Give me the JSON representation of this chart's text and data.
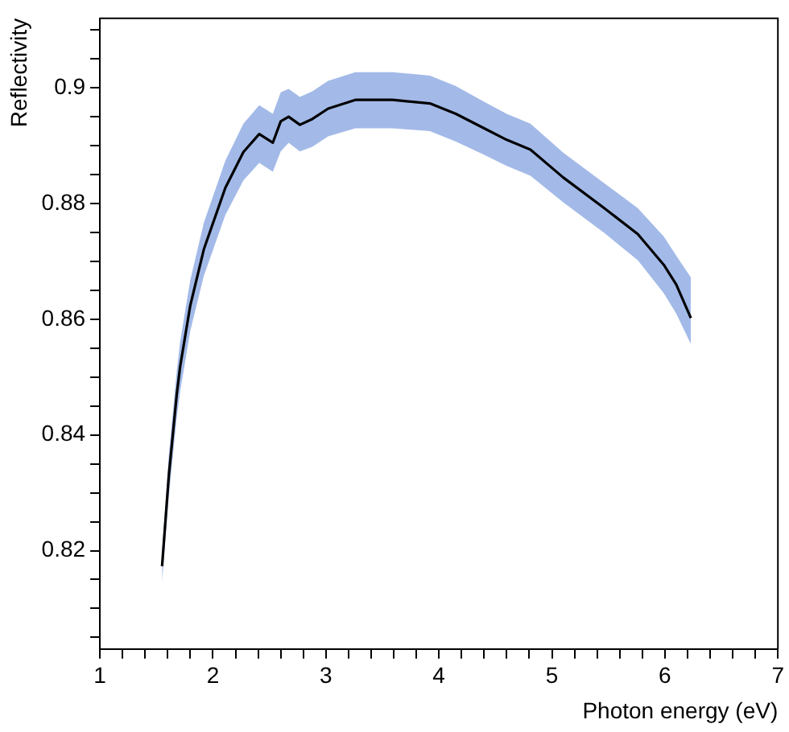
{
  "chart_data": {
    "type": "line",
    "xlabel": "Photon energy (eV)",
    "ylabel": "Reflectivity",
    "xlim": [
      1,
      7
    ],
    "ylim": [
      0.803,
      0.912
    ],
    "xticks": [
      1,
      {
        "value": 1.2,
        "label": null
      },
      {
        "value": 1.4,
        "label": null
      },
      {
        "value": 1.6,
        "label": null
      },
      {
        "value": 1.8,
        "label": null
      },
      2,
      {
        "value": 2.2,
        "label": null
      },
      {
        "value": 2.4,
        "label": null
      },
      {
        "value": 2.6,
        "label": null
      },
      {
        "value": 2.8,
        "label": null
      },
      3,
      {
        "value": 3.2,
        "label": null
      },
      {
        "value": 3.4,
        "label": null
      },
      {
        "value": 3.6,
        "label": null
      },
      {
        "value": 3.8,
        "label": null
      },
      4,
      {
        "value": 4.2,
        "label": null
      },
      {
        "value": 4.4,
        "label": null
      },
      {
        "value": 4.6,
        "label": null
      },
      {
        "value": 4.8,
        "label": null
      },
      5,
      {
        "value": 5.2,
        "label": null
      },
      {
        "value": 5.4,
        "label": null
      },
      {
        "value": 5.6,
        "label": null
      },
      {
        "value": 5.8,
        "label": null
      },
      6,
      {
        "value": 6.2,
        "label": null
      },
      {
        "value": 6.4,
        "label": null
      },
      {
        "value": 6.6,
        "label": null
      },
      {
        "value": 6.8,
        "label": null
      },
      7
    ],
    "yticks": [
      {
        "value": 0.805,
        "label": null
      },
      {
        "value": 0.81,
        "label": null
      },
      {
        "value": 0.815,
        "label": null
      },
      0.82,
      {
        "value": 0.825,
        "label": null
      },
      {
        "value": 0.83,
        "label": null
      },
      {
        "value": 0.835,
        "label": null
      },
      0.84,
      {
        "value": 0.845,
        "label": null
      },
      {
        "value": 0.85,
        "label": null
      },
      {
        "value": 0.855,
        "label": null
      },
      0.86,
      {
        "value": 0.865,
        "label": null
      },
      {
        "value": 0.87,
        "label": null
      },
      {
        "value": 0.875,
        "label": null
      },
      0.88,
      {
        "value": 0.885,
        "label": null
      },
      {
        "value": 0.89,
        "label": null
      },
      {
        "value": 0.895,
        "label": null
      },
      0.9,
      {
        "value": 0.905,
        "label": null
      },
      {
        "value": 0.91,
        "label": null
      }
    ],
    "grid": false,
    "legend": false,
    "marker": "none",
    "line_style": "solid",
    "series": [
      {
        "color": "#000000",
        "x": [
          1.55,
          1.61,
          1.68,
          1.71,
          1.8,
          1.92,
          2.11,
          2.27,
          2.41,
          2.53,
          2.6,
          2.67,
          2.77,
          2.88,
          3.02,
          3.26,
          3.59,
          3.92,
          4.15,
          4.39,
          4.6,
          4.81,
          5.1,
          5.47,
          5.76,
          5.99,
          6.1,
          6.23
        ],
        "values": [
          0.8173,
          0.833,
          0.847,
          0.8518,
          0.8624,
          0.8721,
          0.8827,
          0.8889,
          0.892,
          0.8905,
          0.8942,
          0.895,
          0.8936,
          0.8946,
          0.8964,
          0.8979,
          0.8979,
          0.8973,
          0.8955,
          0.8931,
          0.891,
          0.8893,
          0.8845,
          0.8791,
          0.8747,
          0.8694,
          0.866,
          0.8602
        ],
        "lower": [
          0.8145,
          0.8295,
          0.843,
          0.8475,
          0.858,
          0.8675,
          0.878,
          0.884,
          0.887,
          0.8855,
          0.889,
          0.8905,
          0.889,
          0.8898,
          0.8916,
          0.893,
          0.893,
          0.8925,
          0.8907,
          0.8885,
          0.8865,
          0.8848,
          0.8802,
          0.8748,
          0.8702,
          0.8645,
          0.861,
          0.8557
        ],
        "upper": [
          0.8195,
          0.8365,
          0.851,
          0.8561,
          0.8668,
          0.8767,
          0.8874,
          0.8938,
          0.897,
          0.8955,
          0.8992,
          0.8998,
          0.8984,
          0.8994,
          0.9012,
          0.9027,
          0.9027,
          0.9021,
          0.9003,
          0.8977,
          0.8955,
          0.8938,
          0.8888,
          0.8834,
          0.8792,
          0.8743,
          0.871,
          0.8672
        ]
      }
    ]
  }
}
